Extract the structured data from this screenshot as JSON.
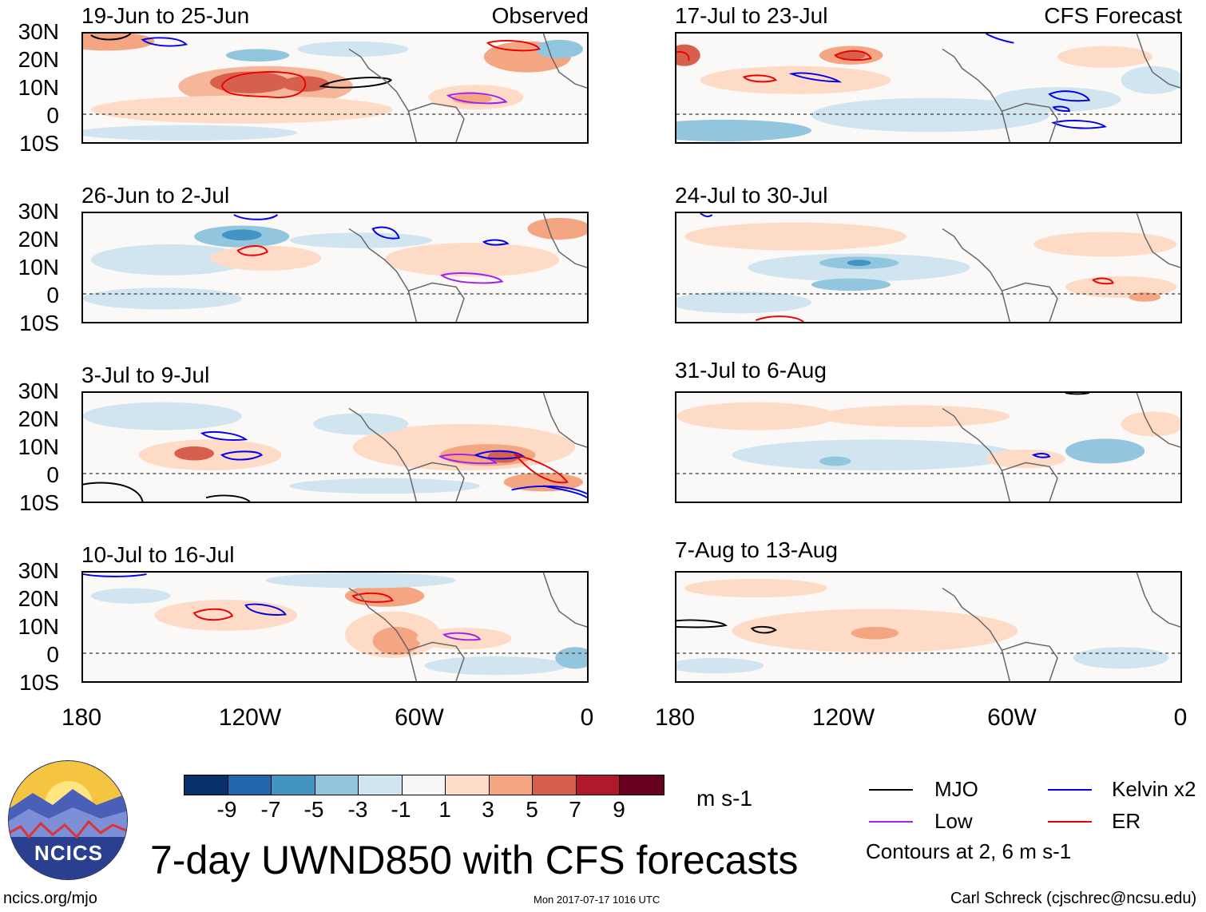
{
  "panels": [
    {
      "period": "19-Jun to 25-Jun",
      "label": "Observed"
    },
    {
      "period": "17-Jul to 23-Jul",
      "label": "CFS Forecast"
    },
    {
      "period": "26-Jun to 2-Jul",
      "label": ""
    },
    {
      "period": "24-Jul to 30-Jul",
      "label": ""
    },
    {
      "period": "3-Jul to 9-Jul",
      "label": ""
    },
    {
      "period": "31-Jul to 6-Aug",
      "label": ""
    },
    {
      "period": "10-Jul to 16-Jul",
      "label": ""
    },
    {
      "period": "7-Aug to 13-Aug",
      "label": ""
    }
  ],
  "lat_labels": [
    "30N",
    "20N",
    "10N",
    "0",
    "10S"
  ],
  "lon_labels": [
    "180",
    "120W",
    "60W",
    "0"
  ],
  "colorbar": {
    "ticks": [
      "-9",
      "-7",
      "-5",
      "-3",
      "-1",
      "1",
      "3",
      "5",
      "7",
      "9"
    ],
    "unit": "m s-1",
    "colors": [
      "#08306b",
      "#2166ac",
      "#4393c3",
      "#92c5de",
      "#d1e5f0",
      "#f7f7f7",
      "#fddbc7",
      "#f4a582",
      "#d6604d",
      "#b2182b",
      "#67001f"
    ]
  },
  "legend": {
    "items": [
      {
        "label": "MJO",
        "color": "#000000"
      },
      {
        "label": "Kelvin x2",
        "color": "#0000ee"
      },
      {
        "label": "Low",
        "color": "#a020f0"
      },
      {
        "label": "ER",
        "color": "#ee0000"
      }
    ],
    "note": "Contours at 2, 6 m s-1"
  },
  "title": "7-day UWND850 with CFS forecasts",
  "logo_text": "NCICS",
  "footer": {
    "left": "ncics.org/mjo",
    "center": "Mon 2017-07-17 1016 UTC",
    "right": "Carl Schreck (cjschrec@ncsu.edu)"
  }
}
